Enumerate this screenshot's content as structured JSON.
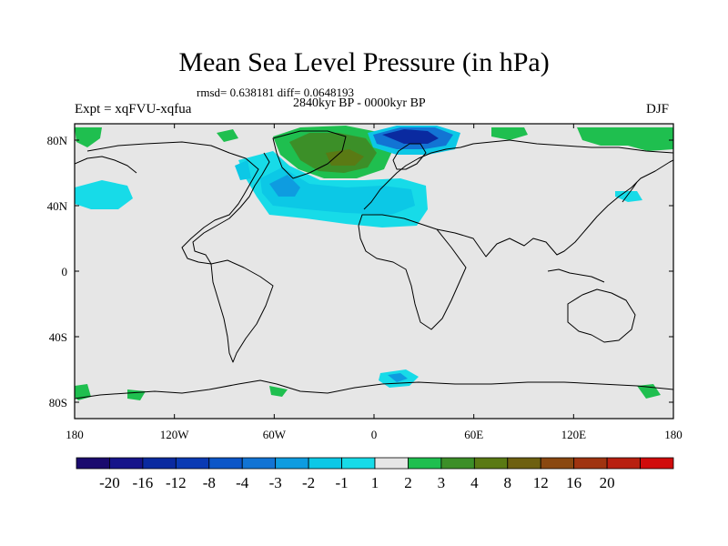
{
  "chart_data": {
    "type": "heatmap",
    "title": "Mean Sea Level Pressure (in hPa)",
    "stats_line": "rmsd= 0.638181 diff= 0.0648193",
    "period": "2840kyr BP - 0000kyr BP",
    "experiment": "Expt = xqFVU-xqfua",
    "season": "DJF",
    "xlim": [
      -180,
      180
    ],
    "ylim": [
      -90,
      90
    ],
    "x_ticks": [
      {
        "value": -180,
        "label": "180"
      },
      {
        "value": -120,
        "label": "120W"
      },
      {
        "value": -60,
        "label": "60W"
      },
      {
        "value": 0,
        "label": "0"
      },
      {
        "value": 60,
        "label": "60E"
      },
      {
        "value": 120,
        "label": "120E"
      },
      {
        "value": 180,
        "label": "180"
      }
    ],
    "y_ticks": [
      {
        "value": 80,
        "label": "80N"
      },
      {
        "value": 40,
        "label": "40N"
      },
      {
        "value": 0,
        "label": "0"
      },
      {
        "value": -40,
        "label": "40S"
      },
      {
        "value": -80,
        "label": "80S"
      }
    ],
    "levels": [
      "-20",
      "-16",
      "-12",
      "-8",
      "-4",
      "-3",
      "-2",
      "-1",
      "1",
      "2",
      "3",
      "4",
      "8",
      "12",
      "16",
      "20"
    ],
    "colors": [
      "#1a0a6e",
      "#16148a",
      "#0a2aa0",
      "#0a3ab4",
      "#0c56c8",
      "#1274d4",
      "#0e9ce0",
      "#0cc8e6",
      "#17dbe8",
      "#e6e6e6",
      "#1fbf4f",
      "#3c8f28",
      "#5a7a14",
      "#6e6010",
      "#8a4810",
      "#a03410",
      "#b82010",
      "#d00c0c"
    ],
    "ocean_color": "#e6e6e6",
    "regions": [
      {
        "name": "north-atlantic-negative",
        "level": "-2",
        "lon": [
          -40,
          20
        ],
        "lat": [
          30,
          50
        ],
        "value": -2.5
      },
      {
        "name": "mediterranean-negative",
        "level": "-1",
        "lon": [
          -20,
          30
        ],
        "lat": [
          25,
          45
        ],
        "value": -1.5
      },
      {
        "name": "greenland-positive",
        "level": "3",
        "lon": [
          -40,
          -5
        ],
        "lat": [
          60,
          75
        ],
        "value": 3.2
      },
      {
        "name": "barents-negative",
        "level": "-4",
        "lon": [
          0,
          40
        ],
        "lat": [
          75,
          90
        ],
        "value": -6
      },
      {
        "name": "north-pacific-negative",
        "level": "-1",
        "lon": [
          -180,
          -150
        ],
        "lat": [
          40,
          50
        ],
        "value": -1.3
      },
      {
        "name": "arctic-positive-east",
        "level": "1",
        "lon": [
          120,
          180
        ],
        "lat": [
          80,
          90
        ],
        "value": 1.5
      },
      {
        "name": "antarctic-negative",
        "level": "-2",
        "lon": [
          0,
          30
        ],
        "lat": [
          -75,
          -65
        ],
        "value": -2
      }
    ]
  }
}
